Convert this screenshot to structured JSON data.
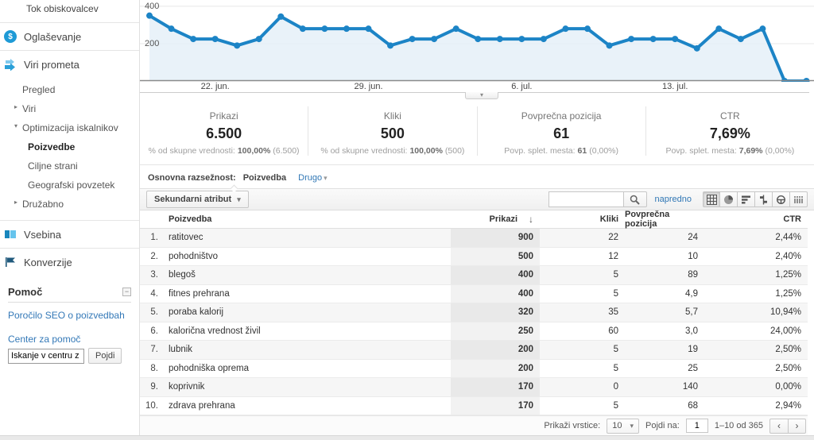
{
  "icons": {
    "dropdown": "▾",
    "collapsed": "▸",
    "expanded": "▾",
    "sort_desc": "↓",
    "minimize": "−",
    "prev": "‹",
    "next": "›",
    "advertising_glyph": "$"
  },
  "sidebar": {
    "top_item": "Tok obiskovalcev",
    "sections": {
      "advertising": "Oglaševanje",
      "traffic_sources": "Viri prometa",
      "content": "Vsebina",
      "conversions": "Konverzije"
    },
    "subnav": [
      "Pregled",
      "Viri",
      "Optimizacija iskalnikov",
      "Poizvedbe",
      "Ciljne strani",
      "Geografski povzetek",
      "Družabno"
    ],
    "help": {
      "title": "Pomoč",
      "report_link": "Poročilo SEO o poizvedbah",
      "center_link": "Center za pomoč",
      "search_value": "Iskanje v centru z",
      "go_label": "Pojdi"
    }
  },
  "chart_data": {
    "type": "line",
    "title": "",
    "xlabel": "",
    "ylabel": "",
    "series": [
      {
        "name": "Prikazi",
        "values": [
          350,
          280,
          225,
          225,
          190,
          225,
          345,
          280,
          280,
          280,
          280,
          190,
          225,
          225,
          280,
          225,
          225,
          225,
          225,
          280,
          280,
          190,
          225,
          225,
          225,
          175,
          280,
          225,
          280,
          0,
          0
        ]
      }
    ],
    "x_tick_labels": [
      "22. jun.",
      "29. jun.",
      "6. jul.",
      "13. jul."
    ],
    "x_tick_indices": [
      3,
      10,
      17,
      24
    ],
    "y_ticks": [
      200,
      400
    ],
    "ylim": [
      0,
      435
    ],
    "grid": true,
    "legend": false,
    "line_color": "#1c84c6",
    "fill_color": "#e3eff8",
    "axis_color": "#8a8a8a"
  },
  "stats": [
    {
      "label": "Prikazi",
      "value": "6.500",
      "sub_prefix": "% od skupne vrednosti:",
      "sub_bold": "100,00%",
      "sub_suffix": "(6.500)"
    },
    {
      "label": "Kliki",
      "value": "500",
      "sub_prefix": "% od skupne vrednosti:",
      "sub_bold": "100,00%",
      "sub_suffix": "(500)"
    },
    {
      "label": "Povprečna pozicija",
      "value": "61",
      "sub_prefix": "Povp. splet. mesta:",
      "sub_bold": "61",
      "sub_suffix": "(0,00%)"
    },
    {
      "label": "CTR",
      "value": "7,69%",
      "sub_prefix": "Povp. splet. mesta:",
      "sub_bold": "7,69%",
      "sub_suffix": "(0,00%)"
    }
  ],
  "dimension_bar": {
    "label": "Osnovna razsežnost:",
    "selected": "Poizvedba",
    "other": "Drugo"
  },
  "toolbar": {
    "secondary_button": "Sekundarni atribut",
    "search_value": "",
    "advanced_link": "napredno",
    "view_modes": [
      "table",
      "percentage",
      "performance",
      "comparison",
      "pivot",
      "term-cloud"
    ],
    "active_view": "table"
  },
  "table": {
    "columns": [
      "Poizvedba",
      "Prikazi",
      "Kliki",
      "Povprečna pozicija",
      "CTR"
    ],
    "sorted_column": "Prikazi",
    "rows": [
      {
        "n": "1.",
        "query": "ratitovec",
        "prikazi": "900",
        "kliki": "22",
        "pozicija": "24",
        "ctr": "2,44%"
      },
      {
        "n": "2.",
        "query": "pohodništvo",
        "prikazi": "500",
        "kliki": "12",
        "pozicija": "10",
        "ctr": "2,40%"
      },
      {
        "n": "3.",
        "query": "blegoš",
        "prikazi": "400",
        "kliki": "5",
        "pozicija": "89",
        "ctr": "1,25%"
      },
      {
        "n": "4.",
        "query": "fitnes prehrana",
        "prikazi": "400",
        "kliki": "5",
        "pozicija": "4,9",
        "ctr": "1,25%"
      },
      {
        "n": "5.",
        "query": "poraba kalorij",
        "prikazi": "320",
        "kliki": "35",
        "pozicija": "5,7",
        "ctr": "10,94%"
      },
      {
        "n": "6.",
        "query": "kalorična vrednost živil",
        "prikazi": "250",
        "kliki": "60",
        "pozicija": "3,0",
        "ctr": "24,00%"
      },
      {
        "n": "7.",
        "query": "lubnik",
        "prikazi": "200",
        "kliki": "5",
        "pozicija": "19",
        "ctr": "2,50%"
      },
      {
        "n": "8.",
        "query": "pohodniška oprema",
        "prikazi": "200",
        "kliki": "5",
        "pozicija": "25",
        "ctr": "2,50%"
      },
      {
        "n": "9.",
        "query": "koprivnik",
        "prikazi": "170",
        "kliki": "0",
        "pozicija": "140",
        "ctr": "0,00%"
      },
      {
        "n": "10.",
        "query": "zdrava prehrana",
        "prikazi": "170",
        "kliki": "5",
        "pozicija": "68",
        "ctr": "2,94%"
      }
    ]
  },
  "footer": {
    "rows_label": "Prikaži vrstice:",
    "rows_value": "10",
    "goto_label": "Pojdi na:",
    "goto_value": "1",
    "range_text": "1–10 od 365"
  }
}
